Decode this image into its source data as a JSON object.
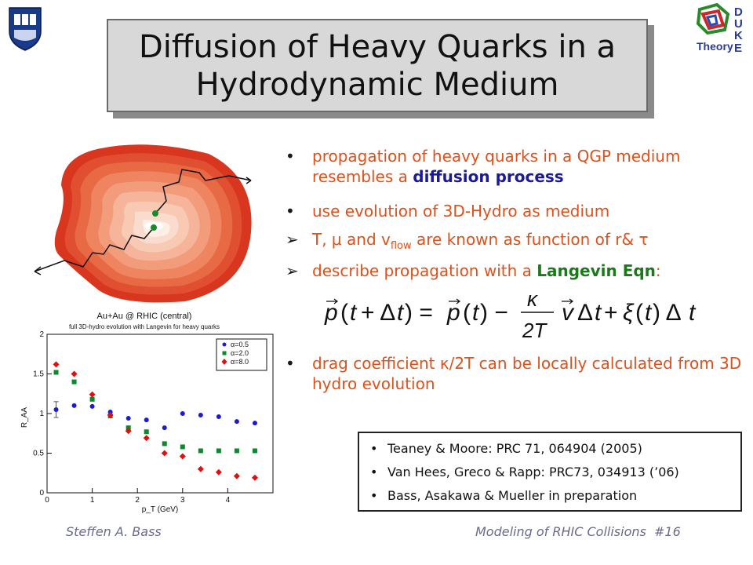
{
  "title": {
    "line1": "Diffusion of Heavy Quarks in a",
    "line2": "Hydrodynamic Medium"
  },
  "logos": {
    "left": "shield-logo",
    "right_text": "Theory",
    "right_letters": [
      "D",
      "U",
      "K",
      "E"
    ]
  },
  "bullets": [
    {
      "marker": "•",
      "pre": "propagation of heavy quarks in a QGP medium resembles a ",
      "bold": "diffusion process",
      "post": ""
    },
    {
      "marker": "•",
      "pre": "use evolution of 3D-Hydro as medium",
      "bold": "",
      "post": ""
    },
    {
      "marker": "➢",
      "pre": "T, μ and v",
      "sub": "flow",
      "post": " are known as function of r& τ"
    },
    {
      "marker": "➢",
      "pre": "describe propagation with a ",
      "bold": "Langevin Eqn",
      "post": ":"
    },
    {
      "marker": "•",
      "pre": "drag coefficient κ/2T can be locally calculated from 3D hydro evolution",
      "bold": "",
      "post": ""
    }
  ],
  "equation": "p(t+Δt) = p(t) − κ/2T · v Δt + ξ(t) Δt",
  "references": [
    "Teaney & Moore: PRC 71, 064904 (2005)",
    "Van Hees, Greco & Rapp: PRC73, 034913 (’06)",
    "Bass, Asakawa & Mueller in preparation"
  ],
  "footer": {
    "author": "Steffen A. Bass",
    "talk": "Modeling of RHIC Collisions  #16"
  },
  "colors": {
    "bullet_text": "#e0501a",
    "bold_blue": "#1a1a9a",
    "bold_green": "#1a7a1a",
    "series_blue": "#1a1ad8",
    "series_green": "#0a8a2a",
    "series_red": "#e01010"
  },
  "chart_data": {
    "type": "scatter",
    "title": "Au+Au @ RHIC (central)",
    "subtitle": "full 3D-hydro evolution with Langevin for heavy quarks",
    "xlabel": "p_T (GeV)",
    "ylabel": "R_AA",
    "xlim": [
      0,
      5
    ],
    "ylim": [
      0,
      2
    ],
    "xticks": [
      "0",
      "1",
      "2",
      "3",
      "4"
    ],
    "yticks": [
      "0",
      "0.5",
      "1",
      "1.5",
      "2"
    ],
    "legend_position": "top-right",
    "series": [
      {
        "name": "α=0.5",
        "marker": "circle",
        "color": "#1a1ad8",
        "x": [
          0.2,
          0.6,
          1.0,
          1.4,
          1.8,
          2.2,
          2.6,
          3.0,
          3.4,
          3.8,
          4.2,
          4.6
        ],
        "y": [
          1.05,
          1.1,
          1.09,
          1.02,
          0.94,
          0.92,
          0.82,
          1.0,
          0.98,
          0.96,
          0.9,
          0.88
        ]
      },
      {
        "name": "α=2.0",
        "marker": "square",
        "color": "#0a8a2a",
        "x": [
          0.2,
          0.6,
          1.0,
          1.4,
          1.8,
          2.2,
          2.6,
          3.0,
          3.4,
          3.8,
          4.2,
          4.6
        ],
        "y": [
          1.52,
          1.4,
          1.18,
          0.97,
          0.82,
          0.77,
          0.62,
          0.58,
          0.53,
          0.53,
          0.53,
          0.53
        ]
      },
      {
        "name": "α=8.0",
        "marker": "diamond",
        "color": "#e01010",
        "x": [
          0.2,
          0.6,
          1.0,
          1.4,
          1.8,
          2.2,
          2.6,
          3.0,
          3.4,
          3.8,
          4.2,
          4.6
        ],
        "y": [
          1.62,
          1.5,
          1.24,
          0.98,
          0.78,
          0.69,
          0.5,
          0.46,
          0.3,
          0.26,
          0.21,
          0.19
        ]
      }
    ],
    "error_bars": [
      {
        "series": "α=0.5",
        "x": 0.2,
        "y": 1.05,
        "err": 0.1
      }
    ]
  }
}
